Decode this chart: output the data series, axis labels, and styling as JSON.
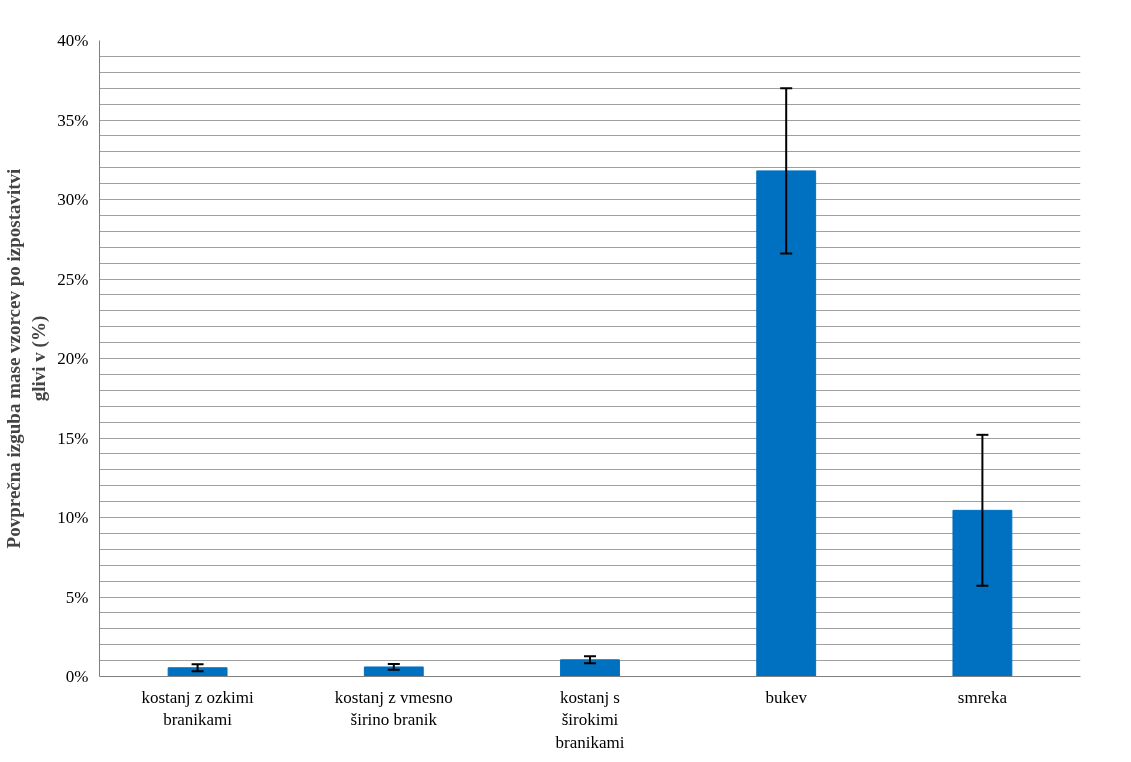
{
  "chart_data": {
    "type": "bar",
    "ylabel": "Povprečna izguba mase vzorcev po izpostavitvi glivi v (%)",
    "categories": [
      "kostanj z ozkimi branikami",
      "kostanj z vmesno širino branik",
      "kostanj s širokimi branikami",
      "bukev",
      "smreka"
    ],
    "values": [
      0.55,
      0.6,
      1.05,
      31.8,
      10.45
    ],
    "errors": [
      0.22,
      0.18,
      0.22,
      5.2,
      4.75
    ],
    "color": "#0070c0",
    "ylim": [
      0,
      40
    ],
    "yticks": [
      {
        "value": 0,
        "label": "0%"
      },
      {
        "value": 1,
        "label": null
      },
      {
        "value": 2,
        "label": null
      },
      {
        "value": 3,
        "label": null
      },
      {
        "value": 4,
        "label": null
      },
      {
        "value": 5,
        "label": "5%"
      },
      {
        "value": 6,
        "label": null
      },
      {
        "value": 7,
        "label": null
      },
      {
        "value": 8,
        "label": null
      },
      {
        "value": 9,
        "label": null
      },
      {
        "value": 10,
        "label": "10%"
      },
      {
        "value": 11,
        "label": null
      },
      {
        "value": 12,
        "label": null
      },
      {
        "value": 13,
        "label": null
      },
      {
        "value": 14,
        "label": null
      },
      {
        "value": 15,
        "label": "15%"
      },
      {
        "value": 16,
        "label": null
      },
      {
        "value": 17,
        "label": null
      },
      {
        "value": 18,
        "label": null
      },
      {
        "value": 19,
        "label": null
      },
      {
        "value": 20,
        "label": "20%"
      },
      {
        "value": 21,
        "label": null
      },
      {
        "value": 22,
        "label": null
      },
      {
        "value": 23,
        "label": null
      },
      {
        "value": 24,
        "label": null
      },
      {
        "value": 25,
        "label": "25%"
      },
      {
        "value": 26,
        "label": null
      },
      {
        "value": 27,
        "label": null
      },
      {
        "value": 28,
        "label": null
      },
      {
        "value": 29,
        "label": null
      },
      {
        "value": 30,
        "label": "30%"
      },
      {
        "value": 31,
        "label": null
      },
      {
        "value": 32,
        "label": null
      },
      {
        "value": 33,
        "label": null
      },
      {
        "value": 34,
        "label": null
      },
      {
        "value": 35,
        "label": "35%"
      },
      {
        "value": 36,
        "label": null
      },
      {
        "value": 37,
        "label": null
      },
      {
        "value": 38,
        "label": null
      },
      {
        "value": 39,
        "label": null
      },
      {
        "value": 40,
        "label": "40%"
      }
    ],
    "grid": "y"
  }
}
